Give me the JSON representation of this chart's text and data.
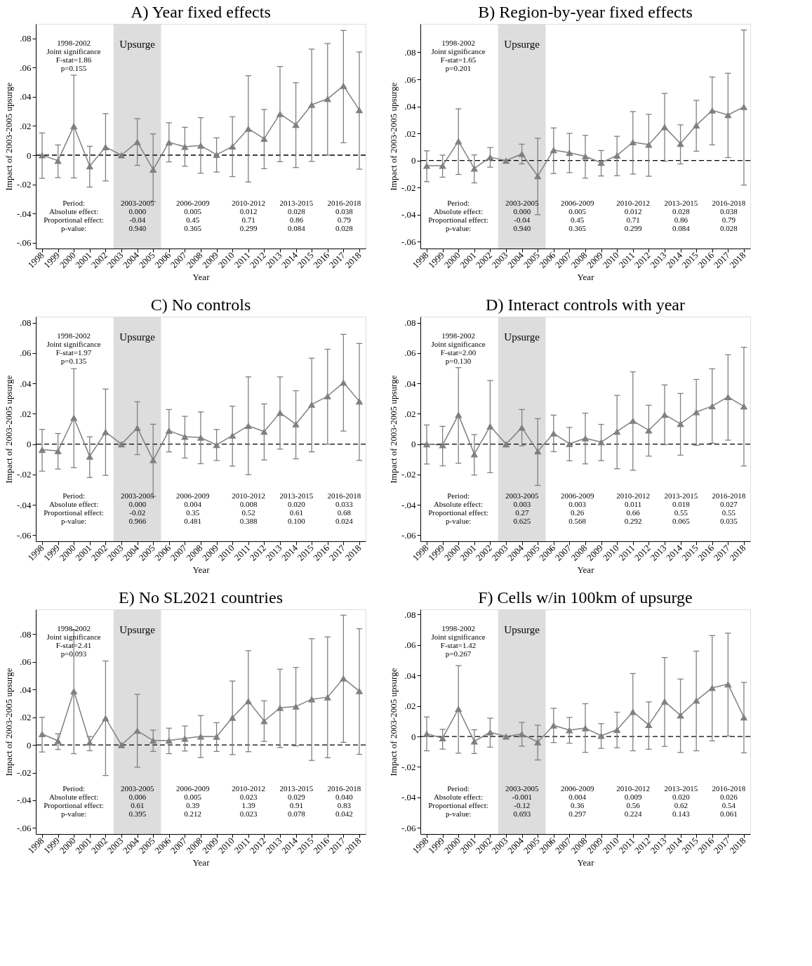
{
  "chart_data": [
    {
      "type": "line",
      "title": "A) Year fixed effects",
      "xlabel": "Year",
      "ylabel": "Impact of 2003-2005 upsurge",
      "color": "#808080",
      "marker": "triangle",
      "grid": false,
      "x": [
        1998,
        1999,
        2000,
        2001,
        2002,
        2003,
        2004,
        2005,
        2006,
        2007,
        2008,
        2009,
        2010,
        2011,
        2012,
        2013,
        2014,
        2015,
        2016,
        2017,
        2018
      ],
      "values": [
        0,
        -0.0038,
        0.0199,
        -0.0075,
        0.0056,
        0,
        0.0091,
        -0.0098,
        0.0088,
        0.0058,
        0.0066,
        0.0003,
        0.006,
        0.0182,
        0.0113,
        0.0283,
        0.0209,
        0.0345,
        0.0386,
        0.0476,
        0.031
      ],
      "errors": [
        [
          -0.0159,
          0.0152
        ],
        [
          -0.0154,
          0.007
        ],
        [
          -0.0156,
          0.0548
        ],
        [
          -0.0219,
          0.0061
        ],
        [
          -0.0177,
          0.0285
        ],
        null,
        [
          -0.007,
          0.025
        ],
        [
          -0.032,
          0.0146
        ],
        [
          -0.0046,
          0.0222
        ],
        [
          -0.0076,
          0.0191
        ],
        [
          -0.0124,
          0.0257
        ],
        [
          -0.0116,
          0.0119
        ],
        [
          -0.0147,
          0.0263
        ],
        [
          -0.0184,
          0.0545
        ],
        [
          -0.0093,
          0.0313
        ],
        [
          -0.0045,
          0.0608
        ],
        [
          -0.0085,
          0.0497
        ],
        [
          -0.0043,
          0.0727
        ],
        [
          0,
          0.0765
        ],
        [
          0.0085,
          0.0855
        ],
        [
          -0.0096,
          0.0707
        ]
      ],
      "xlim": [
        1997.6,
        2018.4
      ],
      "ylim": [
        -0.064,
        0.09
      ],
      "xticks": [
        1998,
        1999,
        2000,
        2001,
        2002,
        2003,
        2004,
        2005,
        2006,
        2007,
        2008,
        2009,
        2010,
        2011,
        2012,
        2013,
        2014,
        2015,
        2016,
        2017,
        2018
      ],
      "yticks": [
        {
          "value": -0.06,
          "label": "-.06"
        },
        {
          "value": -0.04,
          "label": "-.04"
        },
        {
          "value": -0.02,
          "label": "-.02"
        },
        {
          "value": 0,
          "label": "0"
        },
        {
          "value": 0.02,
          "label": ".02"
        },
        {
          "value": 0.04,
          "label": ".04"
        },
        {
          "value": 0.06,
          "label": ".06"
        },
        {
          "value": 0.08,
          "label": ".08"
        }
      ],
      "ref_lines": [
        {
          "axis": "y",
          "value": 0,
          "color": "#000000",
          "line_style": "dashed"
        }
      ],
      "bands": [
        {
          "axis": "x",
          "from": 2002.5,
          "to": 2005.5,
          "label": "Upsurge",
          "color": "#dddddd"
        }
      ],
      "annotations": [
        "1998-2002\nJoint significance\nF-stat=1.86\np=0.155",
        "Period:\nAbsolute effect:\nProportional effect:\np-value:",
        "2003-2005\n0.000\n-0.04\n0.940",
        "2006-2009\n0.005\n0.45\n0.365",
        "2010-2012\n0.012\n0.71\n0.299",
        "2013-2015\n0.028\n0.86\n0.084",
        "2016-2018\n0.038\n0.79\n0.028"
      ]
    },
    {
      "type": "line",
      "title": "B) Region-by-year fixed effects",
      "xlabel": "Year",
      "ylabel": "Impact of 2003-2005 upsurge",
      "color": "#808080",
      "marker": "triangle",
      "grid": false,
      "x": [
        1998,
        1999,
        2000,
        2001,
        2002,
        2003,
        2004,
        2005,
        2006,
        2007,
        2008,
        2009,
        2010,
        2011,
        2012,
        2013,
        2014,
        2015,
        2016,
        2017,
        2018
      ],
      "values": [
        -0.0038,
        -0.0038,
        0.0143,
        -0.0058,
        0.0025,
        0,
        0.0049,
        -0.0114,
        0.0078,
        0.0058,
        0.0031,
        -0.0016,
        0.0038,
        0.0136,
        0.0118,
        0.0248,
        0.0125,
        0.0261,
        0.0371,
        0.0337,
        0.0397
      ],
      "errors": [
        [
          -0.0156,
          0.0072
        ],
        [
          -0.0123,
          0.004
        ],
        [
          -0.0103,
          0.0382
        ],
        [
          -0.0165,
          0.0042
        ],
        [
          -0.0049,
          0.0096
        ],
        null,
        [
          -0.0024,
          0.0121
        ],
        [
          -0.04,
          0.0165
        ],
        [
          -0.0096,
          0.0241
        ],
        [
          -0.0089,
          0.0201
        ],
        [
          -0.013,
          0.0186
        ],
        [
          -0.0114,
          0.0074
        ],
        [
          -0.0112,
          0.0179
        ],
        [
          -0.01,
          0.0362
        ],
        [
          -0.0116,
          0.0342
        ],
        [
          -0.0005,
          0.0496
        ],
        [
          -0.0025,
          0.0264
        ],
        [
          0.0069,
          0.0445
        ],
        [
          0.0116,
          0.0617
        ],
        [
          0.0022,
          0.0645
        ],
        [
          -0.0181,
          0.0965
        ]
      ],
      "xlim": [
        1997.6,
        2018.4
      ],
      "ylim": [
        -0.065,
        0.101
      ],
      "xticks": [
        1998,
        1999,
        2000,
        2001,
        2002,
        2003,
        2004,
        2005,
        2006,
        2007,
        2008,
        2009,
        2010,
        2011,
        2012,
        2013,
        2014,
        2015,
        2016,
        2017,
        2018
      ],
      "yticks": [
        {
          "value": -0.06,
          "label": "-.06"
        },
        {
          "value": -0.04,
          "label": "-.04"
        },
        {
          "value": -0.02,
          "label": "-.02"
        },
        {
          "value": 0,
          "label": "0"
        },
        {
          "value": 0.02,
          "label": ".02"
        },
        {
          "value": 0.04,
          "label": ".04"
        },
        {
          "value": 0.06,
          "label": ".06"
        },
        {
          "value": 0.08,
          "label": ".08"
        }
      ],
      "ref_lines": [
        {
          "axis": "y",
          "value": 0,
          "color": "#000000",
          "line_style": "dashed"
        }
      ],
      "bands": [
        {
          "axis": "x",
          "from": 2002.5,
          "to": 2005.5,
          "label": "Upsurge",
          "color": "#dddddd"
        }
      ],
      "annotations": [
        "1998-2002\nJoint significance\nF-stat=1.65\np=0.201",
        "Period:\nAbsolute effect:\nProportional effect:\np-value:",
        "2003-2005\n0.000\n-0.04\n0.940",
        "2006-2009\n0.005\n0.45\n0.365",
        "2010-2012\n0.012\n0.71\n0.299",
        "2013-2015\n0.028\n0.86\n0.084",
        "2016-2018\n0.038\n0.79\n0.028"
      ]
    },
    {
      "type": "line",
      "title": "C) No controls",
      "xlabel": "Year",
      "ylabel": "Impact of 2003-2005 upsurge",
      "color": "#808080",
      "marker": "triangle",
      "grid": false,
      "x": [
        1998,
        1999,
        2000,
        2001,
        2002,
        2003,
        2004,
        2005,
        2006,
        2007,
        2008,
        2009,
        2010,
        2011,
        2012,
        2013,
        2014,
        2015,
        2016,
        2017,
        2018
      ],
      "values": [
        -0.0037,
        -0.0045,
        0.0174,
        -0.0081,
        0.008,
        0,
        0.0107,
        -0.0105,
        0.0089,
        0.0049,
        0.0043,
        -0.0005,
        0.0057,
        0.0121,
        0.0083,
        0.0207,
        0.0131,
        0.0261,
        0.0316,
        0.0406,
        0.0282
      ],
      "errors": [
        [
          -0.0178,
          0.0097
        ],
        [
          -0.0164,
          0.007
        ],
        [
          -0.0155,
          0.0497
        ],
        [
          -0.022,
          0.0048
        ],
        [
          -0.0206,
          0.0363
        ],
        null,
        [
          -0.0069,
          0.0279
        ],
        [
          -0.0344,
          0.0131
        ],
        [
          -0.0051,
          0.0228
        ],
        [
          -0.0092,
          0.0183
        ],
        [
          -0.0129,
          0.0212
        ],
        [
          -0.0108,
          0.0096
        ],
        [
          -0.0145,
          0.025
        ],
        [
          -0.0201,
          0.0443
        ],
        [
          -0.0104,
          0.0265
        ],
        [
          -0.0033,
          0.0443
        ],
        [
          -0.0097,
          0.0352
        ],
        [
          -0.0051,
          0.0566
        ],
        [
          0,
          0.0625
        ],
        [
          0.0086,
          0.0723
        ],
        [
          -0.0107,
          0.0663
        ]
      ],
      "xlim": [
        1997.6,
        2018.4
      ],
      "ylim": [
        -0.064,
        0.084
      ],
      "xticks": [
        1998,
        1999,
        2000,
        2001,
        2002,
        2003,
        2004,
        2005,
        2006,
        2007,
        2008,
        2009,
        2010,
        2011,
        2012,
        2013,
        2014,
        2015,
        2016,
        2017,
        2018
      ],
      "yticks": [
        {
          "value": -0.06,
          "label": "-.06"
        },
        {
          "value": -0.04,
          "label": "-.04"
        },
        {
          "value": -0.02,
          "label": "-.02"
        },
        {
          "value": 0,
          "label": "0"
        },
        {
          "value": 0.02,
          "label": ".02"
        },
        {
          "value": 0.04,
          "label": ".04"
        },
        {
          "value": 0.06,
          "label": ".06"
        },
        {
          "value": 0.08,
          "label": ".08"
        }
      ],
      "ref_lines": [
        {
          "axis": "y",
          "value": 0,
          "color": "#000000",
          "line_style": "dashed"
        }
      ],
      "bands": [
        {
          "axis": "x",
          "from": 2002.5,
          "to": 2005.5,
          "label": "Upsurge",
          "color": "#dddddd"
        }
      ],
      "annotations": [
        "1998-2002\nJoint significance\nF-stat=1.97\np=0.135",
        "Period:\nAbsolute effect:\nProportional effect:\np-value:",
        "2003-2005\n0.000\n-0.02\n0.966",
        "2006-2009\n0.004\n0.35\n0.481",
        "2010-2012\n0.008\n0.52\n0.388",
        "2013-2015\n0.020\n0.61\n0.100",
        "2016-2018\n0.033\n0.68\n0.024"
      ]
    },
    {
      "type": "line",
      "title": "D) Interact controls with year",
      "xlabel": "Year",
      "ylabel": "Impact of 2003-2005 upsurge",
      "color": "#808080",
      "marker": "triangle",
      "grid": false,
      "x": [
        1998,
        1999,
        2000,
        2001,
        2002,
        2003,
        2004,
        2005,
        2006,
        2007,
        2008,
        2009,
        2010,
        2011,
        2012,
        2013,
        2014,
        2015,
        2016,
        2017,
        2018
      ],
      "values": [
        0,
        -0.0006,
        0.0193,
        -0.0066,
        0.0118,
        0,
        0.0109,
        -0.0047,
        0.0071,
        0.0002,
        0.0039,
        0.0013,
        0.0083,
        0.0154,
        0.0091,
        0.0194,
        0.0134,
        0.0211,
        0.0251,
        0.0311,
        0.0249
      ],
      "errors": [
        [
          -0.0131,
          0.0126
        ],
        [
          -0.0143,
          0.0117
        ],
        [
          -0.0126,
          0.0504
        ],
        [
          -0.0204,
          0.0063
        ],
        [
          -0.0188,
          0.0419
        ],
        null,
        [
          -0.0011,
          0.0228
        ],
        [
          -0.0272,
          0.0168
        ],
        [
          -0.005,
          0.0191
        ],
        [
          -0.011,
          0.011
        ],
        [
          -0.013,
          0.0204
        ],
        [
          -0.0109,
          0.013
        ],
        [
          -0.0162,
          0.0321
        ],
        [
          -0.0172,
          0.0476
        ],
        [
          -0.0079,
          0.0256
        ],
        [
          -0.0003,
          0.039
        ],
        [
          -0.0073,
          0.0334
        ],
        [
          -0.0008,
          0.0426
        ],
        [
          0.0006,
          0.0496
        ],
        [
          0.0026,
          0.0589
        ],
        [
          -0.0144,
          0.0638
        ]
      ],
      "xlim": [
        1997.6,
        2018.4
      ],
      "ylim": [
        -0.064,
        0.084
      ],
      "xticks": [
        1998,
        1999,
        2000,
        2001,
        2002,
        2003,
        2004,
        2005,
        2006,
        2007,
        2008,
        2009,
        2010,
        2011,
        2012,
        2013,
        2014,
        2015,
        2016,
        2017,
        2018
      ],
      "yticks": [
        {
          "value": -0.06,
          "label": "-.06"
        },
        {
          "value": -0.04,
          "label": "-.04"
        },
        {
          "value": -0.02,
          "label": "-.02"
        },
        {
          "value": 0,
          "label": "0"
        },
        {
          "value": 0.02,
          "label": ".02"
        },
        {
          "value": 0.04,
          "label": ".04"
        },
        {
          "value": 0.06,
          "label": ".06"
        },
        {
          "value": 0.08,
          "label": ".08"
        }
      ],
      "ref_lines": [
        {
          "axis": "y",
          "value": 0,
          "color": "#000000",
          "line_style": "dashed"
        }
      ],
      "bands": [
        {
          "axis": "x",
          "from": 2002.5,
          "to": 2005.5,
          "label": "Upsurge",
          "color": "#dddddd"
        }
      ],
      "annotations": [
        "1998-2002\nJoint significance\nF-stat=2.00\np=0.130",
        "Period:\nAbsolute effect:\nProportional effect:\np-value:",
        "2003-2005\n0.003\n0.27\n0.625",
        "2006-2009\n0.003\n0.26\n0.568",
        "2010-2012\n0.011\n0.66\n0.292",
        "2013-2015\n0.018\n0.55\n0.065",
        "2016-2018\n0.027\n0.55\n0.035"
      ]
    },
    {
      "type": "line",
      "title": "E) No SL2021 countries",
      "xlabel": "Year",
      "ylabel": "Impact of 2003-2005 upsurge",
      "color": "#808080",
      "marker": "triangle",
      "grid": false,
      "x": [
        1998,
        1999,
        2000,
        2001,
        2002,
        2003,
        2004,
        2005,
        2006,
        2007,
        2008,
        2009,
        2010,
        2011,
        2012,
        2013,
        2014,
        2015,
        2016,
        2017,
        2018
      ],
      "values": [
        0.0079,
        0.003,
        0.0389,
        0.0018,
        0.0194,
        0,
        0.0103,
        0.0032,
        0.0032,
        0.0047,
        0.0061,
        0.006,
        0.0198,
        0.0317,
        0.0173,
        0.0268,
        0.0278,
        0.0331,
        0.0345,
        0.0481,
        0.039
      ],
      "errors": [
        [
          -0.0051,
          0.02
        ],
        [
          -0.0033,
          0.0081
        ],
        [
          -0.0063,
          0.083
        ],
        [
          -0.0042,
          0.0061
        ],
        [
          -0.0221,
          0.0607
        ],
        null,
        [
          -0.0161,
          0.0366
        ],
        [
          -0.0047,
          0.0107
        ],
        [
          -0.0063,
          0.0121
        ],
        [
          -0.0044,
          0.0137
        ],
        [
          -0.0091,
          0.0212
        ],
        [
          -0.0047,
          0.0161
        ],
        [
          -0.007,
          0.0462
        ],
        [
          -0.0049,
          0.0681
        ],
        [
          0.0025,
          0.0319
        ],
        [
          -0.0018,
          0.0548
        ],
        [
          -0.0007,
          0.056
        ],
        [
          -0.0112,
          0.0768
        ],
        [
          -0.0093,
          0.0781
        ],
        [
          0.0019,
          0.0938
        ],
        [
          -0.0068,
          0.084
        ]
      ],
      "xlim": [
        1997.6,
        2018.4
      ],
      "ylim": [
        -0.0644,
        0.098
      ],
      "xticks": [
        1998,
        1999,
        2000,
        2001,
        2002,
        2003,
        2004,
        2005,
        2006,
        2007,
        2008,
        2009,
        2010,
        2011,
        2012,
        2013,
        2014,
        2015,
        2016,
        2017,
        2018
      ],
      "yticks": [
        {
          "value": -0.06,
          "label": "-.06"
        },
        {
          "value": -0.04,
          "label": "-.04"
        },
        {
          "value": -0.02,
          "label": "-.02"
        },
        {
          "value": 0,
          "label": "0"
        },
        {
          "value": 0.02,
          "label": ".02"
        },
        {
          "value": 0.04,
          "label": ".04"
        },
        {
          "value": 0.06,
          "label": ".06"
        },
        {
          "value": 0.08,
          "label": ".08"
        }
      ],
      "ref_lines": [
        {
          "axis": "y",
          "value": 0,
          "color": "#000000",
          "line_style": "dashed"
        }
      ],
      "bands": [
        {
          "axis": "x",
          "from": 2002.5,
          "to": 2005.5,
          "label": "Upsurge",
          "color": "#dddddd"
        }
      ],
      "annotations": [
        "1998-2002\nJoint significance\nF-stat=2.41\np=0.093",
        "Period:\nAbsolute effect:\nProportional effect:\np-value:",
        "2003-2005\n0.006\n0.61\n0.395",
        "2006-2009\n0.005\n0.39\n0.212",
        "2010-2012\n0.023\n1.39\n0.023",
        "2013-2015\n0.029\n0.91\n0.078",
        "2016-2018\n0.040\n0.83\n0.042"
      ]
    },
    {
      "type": "line",
      "title": "F) Cells w/in 100km of upsurge",
      "xlabel": "Year",
      "ylabel": "Impact of 2003-2005 upsurge",
      "color": "#808080",
      "marker": "triangle",
      "grid": false,
      "x": [
        1998,
        1999,
        2000,
        2001,
        2002,
        2003,
        2004,
        2005,
        2006,
        2007,
        2008,
        2009,
        2010,
        2011,
        2012,
        2013,
        2014,
        2015,
        2016,
        2017,
        2018
      ],
      "values": [
        0.0018,
        -0.0011,
        0.0181,
        -0.0032,
        0.0028,
        0,
        0.0016,
        -0.0037,
        0.0073,
        0.0042,
        0.0055,
        0.0005,
        0.0044,
        0.0162,
        0.0076,
        0.023,
        0.0139,
        0.0236,
        0.0319,
        0.0343,
        0.0126
      ],
      "errors": [
        [
          -0.0094,
          0.0128
        ],
        [
          -0.0083,
          0.0047
        ],
        [
          -0.011,
          0.0465
        ],
        [
          -0.0112,
          0.0044
        ],
        [
          -0.007,
          0.012
        ],
        null,
        [
          -0.0063,
          0.0092
        ],
        [
          -0.0154,
          0.0074
        ],
        [
          -0.004,
          0.0185
        ],
        [
          -0.0044,
          0.0125
        ],
        [
          -0.0104,
          0.0215
        ],
        [
          -0.0078,
          0.0084
        ],
        [
          -0.0074,
          0.0159
        ],
        [
          -0.0094,
          0.0413
        ],
        [
          -0.0084,
          0.0227
        ],
        [
          -0.0065,
          0.0518
        ],
        [
          -0.0105,
          0.0377
        ],
        [
          -0.0094,
          0.056
        ],
        [
          -0.0029,
          0.0662
        ],
        [
          0.0003,
          0.0678
        ],
        [
          -0.0107,
          0.0355
        ]
      ],
      "xlim": [
        1997.6,
        2018.4
      ],
      "ylim": [
        -0.064,
        0.0834
      ],
      "xticks": [
        1998,
        1999,
        2000,
        2001,
        2002,
        2003,
        2004,
        2005,
        2006,
        2007,
        2008,
        2009,
        2010,
        2011,
        2012,
        2013,
        2014,
        2015,
        2016,
        2017,
        2018
      ],
      "yticks": [
        {
          "value": -0.06,
          "label": "-.06"
        },
        {
          "value": -0.04,
          "label": "-.04"
        },
        {
          "value": -0.02,
          "label": "-.02"
        },
        {
          "value": 0,
          "label": "0"
        },
        {
          "value": 0.02,
          "label": ".02"
        },
        {
          "value": 0.04,
          "label": ".04"
        },
        {
          "value": 0.06,
          "label": ".06"
        },
        {
          "value": 0.08,
          "label": ".08"
        }
      ],
      "ref_lines": [
        {
          "axis": "y",
          "value": 0,
          "color": "#000000",
          "line_style": "dashed"
        }
      ],
      "bands": [
        {
          "axis": "x",
          "from": 2002.5,
          "to": 2005.5,
          "label": "Upsurge",
          "color": "#dddddd"
        }
      ],
      "annotations": [
        "1998-2002\nJoint significance\nF-stat=1.42\np=0.267",
        "Period:\nAbsolute effect:\nProportional effect:\np-value:",
        "2003-2005\n-0.001\n-0.12\n0.693",
        "2006-2009\n0.004\n0.36\n0.297",
        "2010-2012\n0.009\n0.56\n0.224",
        "2013-2015\n0.020\n0.62\n0.143",
        "2016-2018\n0.026\n0.54\n0.061"
      ]
    }
  ]
}
